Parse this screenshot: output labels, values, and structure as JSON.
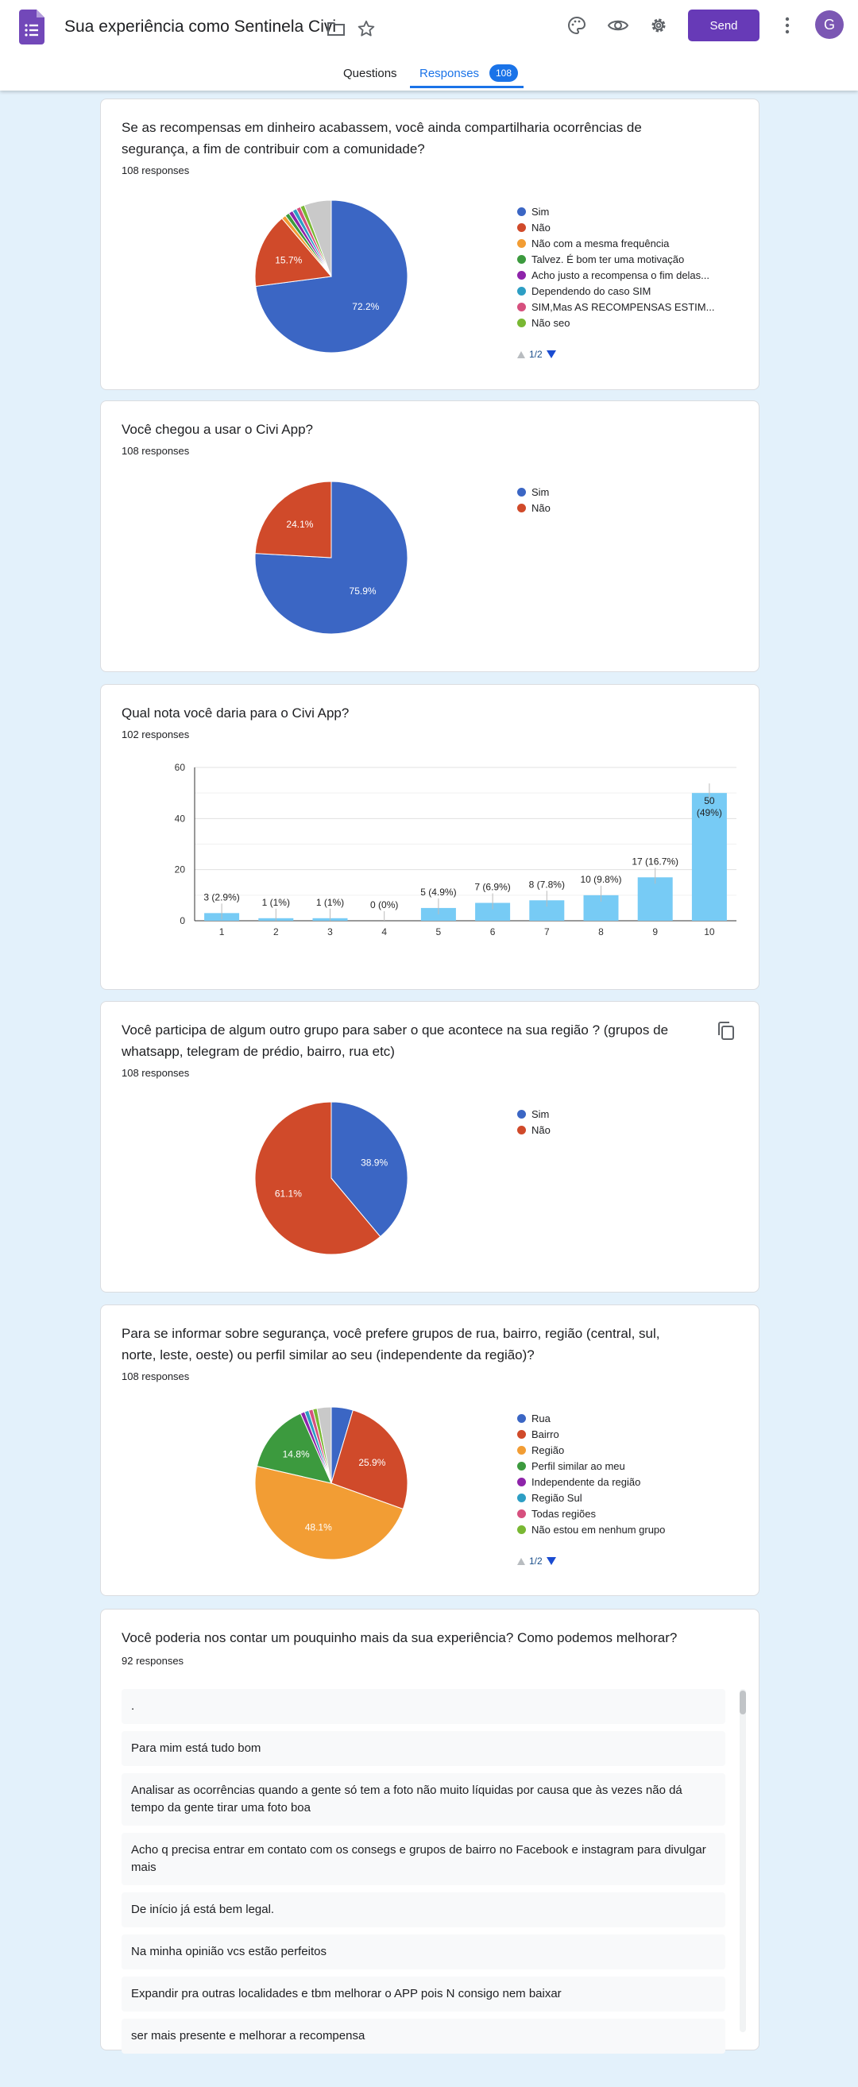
{
  "header": {
    "title": "Sua experiência como Sentinela Civi",
    "send_label": "Send",
    "avatar_letter": "G",
    "tabs": {
      "questions": "Questions",
      "responses": "Responses",
      "responses_count": "108"
    }
  },
  "questions": [
    {
      "title": "Se as recompensas em dinheiro acabassem, você ainda compartilharia ocorrências de segurança, a fim de contribuir com a comunidade?",
      "count": "108 responses",
      "pager": "1/2",
      "chart_data": {
        "type": "pie",
        "slices": [
          {
            "label": "Sim",
            "value": 72.2,
            "color": "#3b66c4",
            "pct_label": "72.2%"
          },
          {
            "label": "Não",
            "value": 15.7,
            "color": "#d04a2a",
            "pct_label": "15.7%"
          },
          {
            "label": "Não com a mesma frequência",
            "value": 0.9,
            "color": "#f29d34"
          },
          {
            "label": "Talvez. É bom ter uma motivação",
            "value": 0.9,
            "color": "#3c9a3e"
          },
          {
            "label": "Acho justo a recompensa o fim delas...",
            "value": 0.9,
            "color": "#8e24aa"
          },
          {
            "label": "Dependendo do caso SIM",
            "value": 0.9,
            "color": "#2d9ec4"
          },
          {
            "label": "SIM,Mas AS RECOMPENSAS ESTIM...",
            "value": 0.9,
            "color": "#d6507e"
          },
          {
            "label": "Não seo",
            "value": 0.9,
            "color": "#79b833"
          },
          {
            "label": "",
            "value": 5.7,
            "color": "#c9c9c9"
          }
        ],
        "legend": [
          "Sim",
          "Não",
          "Não com a mesma frequência",
          "Talvez. É bom ter uma motivação",
          "Acho justo a recompensa o fim delas...",
          "Dependendo do caso SIM",
          "SIM,Mas AS RECOMPENSAS ESTIM...",
          "Não seo"
        ]
      }
    },
    {
      "title": "Você chegou a usar o Civi App?",
      "count": "108 responses",
      "chart_data": {
        "type": "pie",
        "slices": [
          {
            "label": "Sim",
            "value": 75.9,
            "color": "#3b66c4",
            "pct_label": "75.9%"
          },
          {
            "label": "Não",
            "value": 24.1,
            "color": "#d04a2a",
            "pct_label": "24.1%"
          }
        ],
        "legend": [
          "Sim",
          "Não"
        ]
      }
    },
    {
      "title": "Qual nota você daria para o Civi App?",
      "count": "102 responses",
      "chart_data": {
        "type": "bar",
        "categories": [
          "1",
          "2",
          "3",
          "4",
          "5",
          "6",
          "7",
          "8",
          "9",
          "10"
        ],
        "values": [
          3,
          1,
          1,
          0,
          5,
          7,
          8,
          10,
          17,
          50
        ],
        "labels": [
          "3 (2.9%)",
          "1 (1%)",
          "1 (1%)",
          "0 (0%)",
          "5 (4.9%)",
          "7 (6.9%)",
          "8 (7.8%)",
          "10 (9.8%)",
          "17 (16.7%)",
          "50 (49%)"
        ],
        "yticks": [
          "0",
          "20",
          "40",
          "60"
        ],
        "ylim": [
          0,
          60
        ],
        "color": "#77cbf5"
      }
    },
    {
      "title": "Você participa de algum outro grupo para saber o que acontece na sua região ? (grupos de whatsapp, telegram de prédio, bairro, rua etc)",
      "count": "108 responses",
      "chart_data": {
        "type": "pie",
        "slices": [
          {
            "label": "Sim",
            "value": 38.9,
            "color": "#3b66c4",
            "pct_label": "38.9%"
          },
          {
            "label": "Não",
            "value": 61.1,
            "color": "#d04a2a",
            "pct_label": "61.1%"
          }
        ],
        "legend": [
          "Sim",
          "Não"
        ]
      }
    },
    {
      "title": "Para se informar sobre segurança, você prefere grupos de rua, bairro, região (central, sul, norte, leste, oeste) ou perfil similar ao seu (independente da região)?",
      "count": "108 responses",
      "pager": "1/2",
      "chart_data": {
        "type": "pie",
        "slices": [
          {
            "label": "Rua",
            "value": 4.6,
            "color": "#3b66c4"
          },
          {
            "label": "Bairro",
            "value": 25.9,
            "color": "#d04a2a",
            "pct_label": "25.9%"
          },
          {
            "label": "Região",
            "value": 48.1,
            "color": "#f29d34",
            "pct_label": "48.1%"
          },
          {
            "label": "Perfil similar ao meu",
            "value": 14.8,
            "color": "#3c9a3e",
            "pct_label": "14.8%"
          },
          {
            "label": "Independente da região",
            "value": 0.9,
            "color": "#8e24aa"
          },
          {
            "label": "Região Sul",
            "value": 0.9,
            "color": "#2d9ec4"
          },
          {
            "label": "Todas regiões",
            "value": 0.9,
            "color": "#d6507e"
          },
          {
            "label": "Não estou em nenhum grupo",
            "value": 0.9,
            "color": "#79b833"
          },
          {
            "label": "",
            "value": 3.0,
            "color": "#c9c9c9"
          }
        ],
        "legend": [
          "Rua",
          "Bairro",
          "Região",
          "Perfil similar ao meu",
          "Independente da região",
          "Região Sul",
          "Todas regiões",
          "Não estou em nenhum grupo"
        ]
      }
    },
    {
      "title": "Você poderia nos contar um pouquinho mais da sua experiência? Como podemos melhorar?",
      "count": "92 responses",
      "responses": [
        ".",
        "Para mim está tudo bom",
        "Analisar as ocorrências quando a gente só tem a foto não muito líquidas por causa que às vezes não dá tempo da gente tirar uma foto boa",
        "Acho q precisa entrar em contato com os consegs e grupos de bairro no Facebook e instagram para divulgar mais",
        "De início já está bem legal.",
        "Na minha opinião vcs estão perfeitos",
        "Expandir pra outras localidades e tbm melhorar o APP pois N consigo nem baixar",
        "ser mais presente e melhorar a recompensa"
      ]
    }
  ]
}
